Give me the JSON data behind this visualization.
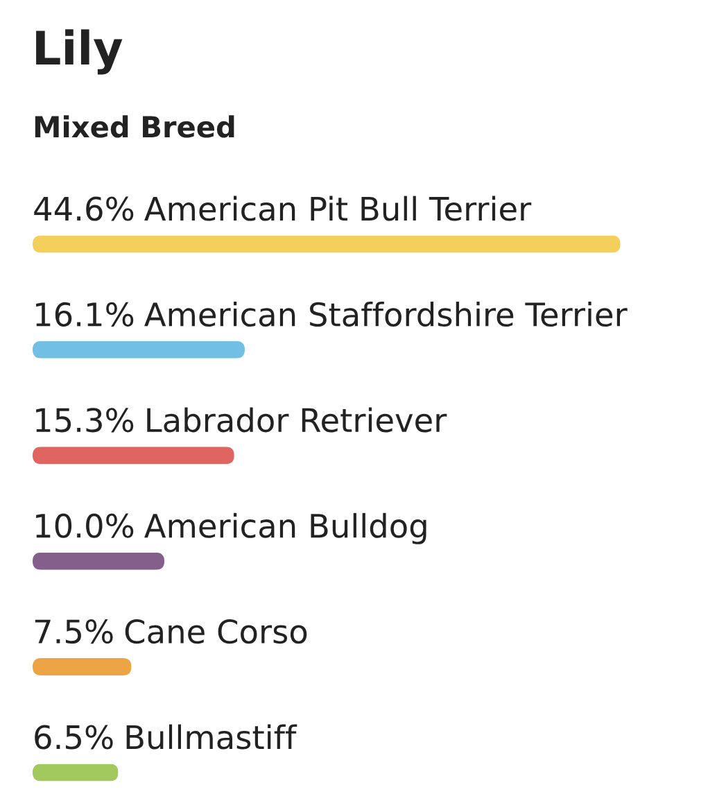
{
  "chart_data": {
    "type": "bar",
    "orientation": "horizontal",
    "title": "Lily",
    "subtitle": "Mixed Breed",
    "categories": [
      "American Pit Bull Terrier",
      "American Staffordshire Terrier",
      "Labrador Retriever",
      "American Bulldog",
      "Cane Corso",
      "Bullmastiff"
    ],
    "values": [
      44.6,
      16.1,
      15.3,
      10.0,
      7.5,
      6.5
    ],
    "value_labels": [
      "44.6%",
      "16.1%",
      "15.3%",
      "10.0%",
      "7.5%",
      "6.5%"
    ],
    "colors": [
      "#f5cf5b",
      "#72bfe4",
      "#e06560",
      "#855f8b",
      "#eca444",
      "#a2c95e"
    ],
    "tick_labels": false
  }
}
